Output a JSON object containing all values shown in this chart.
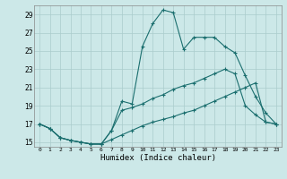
{
  "title": "",
  "xlabel": "Humidex (Indice chaleur)",
  "background_color": "#cce8e8",
  "grid_color": "#aacccc",
  "line_color": "#1a6e6e",
  "xlim": [
    -0.5,
    23.5
  ],
  "ylim": [
    14.5,
    30.0
  ],
  "xticks": [
    0,
    1,
    2,
    3,
    4,
    5,
    6,
    7,
    8,
    9,
    10,
    11,
    12,
    13,
    14,
    15,
    16,
    17,
    18,
    19,
    20,
    21,
    22,
    23
  ],
  "yticks": [
    15,
    17,
    19,
    21,
    23,
    25,
    27,
    29
  ],
  "line1_x": [
    0,
    1,
    2,
    3,
    4,
    5,
    6,
    7,
    8,
    9,
    10,
    11,
    12,
    13,
    14,
    15,
    16,
    17,
    18,
    19,
    20,
    21,
    22,
    23
  ],
  "line1_y": [
    17.0,
    16.5,
    15.5,
    15.2,
    15.0,
    14.8,
    14.8,
    15.3,
    15.8,
    16.3,
    16.8,
    17.2,
    17.5,
    17.8,
    18.2,
    18.5,
    19.0,
    19.5,
    20.0,
    20.5,
    21.0,
    21.5,
    17.2,
    17.0
  ],
  "line2_x": [
    0,
    1,
    2,
    3,
    4,
    5,
    6,
    7,
    8,
    9,
    10,
    11,
    12,
    13,
    14,
    15,
    16,
    17,
    18,
    19,
    20,
    21,
    22,
    23
  ],
  "line2_y": [
    17.0,
    16.5,
    15.5,
    15.2,
    15.0,
    14.8,
    14.8,
    16.3,
    19.5,
    19.2,
    25.5,
    28.0,
    29.5,
    29.2,
    25.2,
    26.5,
    26.5,
    26.5,
    25.5,
    24.8,
    22.3,
    20.0,
    18.2,
    17.0
  ],
  "line3_x": [
    0,
    1,
    2,
    3,
    4,
    5,
    6,
    7,
    8,
    9,
    10,
    11,
    12,
    13,
    14,
    15,
    16,
    17,
    18,
    19,
    20,
    21,
    22,
    23
  ],
  "line3_y": [
    17.0,
    16.5,
    15.5,
    15.2,
    15.0,
    14.8,
    14.8,
    16.3,
    18.5,
    18.8,
    19.2,
    19.8,
    20.2,
    20.8,
    21.2,
    21.5,
    22.0,
    22.5,
    23.0,
    22.5,
    19.0,
    18.0,
    17.2,
    17.0
  ]
}
